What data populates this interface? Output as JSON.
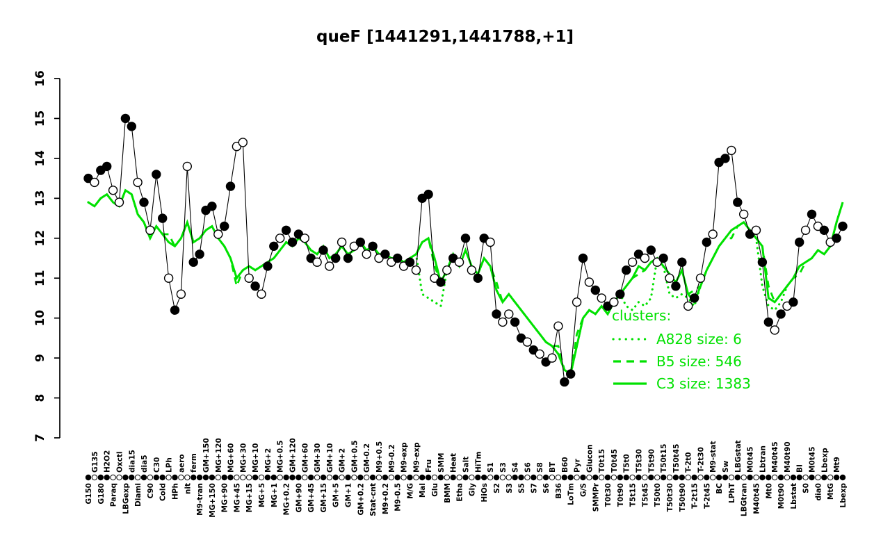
{
  "title": "queF [1441291,1441788,+1]",
  "colors": {
    "cluster_green": "#00e100",
    "point_black": "#000000",
    "background": "#ffffff"
  },
  "legend": {
    "header": "clusters:",
    "color": "#00e100",
    "items": [
      {
        "name": "A828",
        "label": "A828 size: 6",
        "size": 6,
        "style": "dotted"
      },
      {
        "name": "B5",
        "label": "B5 size: 546",
        "size": 546,
        "style": "dashed"
      },
      {
        "name": "C3",
        "label": "C3 size: 1383",
        "size": 1383,
        "style": "solid"
      }
    ]
  },
  "chart_data": {
    "type": "line",
    "title": "queF [1441291,1441788,+1]",
    "xlabel": "",
    "ylabel": "",
    "ylim": [
      7,
      16
    ],
    "yticks": [
      7,
      8,
      9,
      10,
      11,
      12,
      13,
      14,
      15,
      16
    ],
    "grid": false,
    "legend_position": "inside-right",
    "categories": [
      "G150",
      "G135",
      "G180",
      "H2O2",
      "Paraq",
      "Oxctl",
      "LBGexp",
      "dia15",
      "Diami",
      "dia5",
      "C90",
      "C30",
      "Cold",
      "LPh",
      "HPh",
      "aero",
      "nit",
      "ferm",
      "M9-tran",
      "GM+150",
      "MG+150",
      "MG+120",
      "MG+90",
      "MG+60",
      "MG+45",
      "MG+30",
      "MG+15",
      "MG+10",
      "MG+5",
      "MG+2",
      "MG+1",
      "MG+0.5",
      "MG+0.2",
      "GM+120",
      "GM+90",
      "GM+60",
      "GM+45",
      "GM+30",
      "GM+15",
      "GM+10",
      "GM+5",
      "GM+2",
      "GM+1",
      "GM+0.5",
      "GM+0.2",
      "GM-0.2",
      "Stat-cnt",
      "M9+0.5",
      "M9+0.2",
      "M9-0.2",
      "M9-0.5",
      "M9-exp",
      "M/G",
      "M9-exp",
      "Mal",
      "Fru",
      "Glu",
      "SMM",
      "BMM",
      "Heat",
      "Etha",
      "Salt",
      "Gly",
      "HiTm",
      "HiOs",
      "S1",
      "S2",
      "S3",
      "S3",
      "S4",
      "S5",
      "S6",
      "S7",
      "S8",
      "S6",
      "BT",
      "B36",
      "B60",
      "LoTm",
      "Pyr",
      "G/S",
      "Glucon",
      "SMMPr",
      "T0t15",
      "T0t30",
      "T0t45",
      "T0t90",
      "T5t0",
      "T5t15",
      "T5t30",
      "T5t45",
      "T5t90",
      "T50t0",
      "T50t15",
      "T50t30",
      "T50t45",
      "T50t90",
      "T-2t0",
      "T-2t15",
      "T-2t30",
      "T-2t45",
      "M9-stat",
      "BC",
      "Sw",
      "LPhT",
      "LBGstat",
      "LBGtran",
      "M0t45",
      "M40t45",
      "Lbtran",
      "Mt0",
      "M40t45",
      "M0t90",
      "M40t90",
      "Lbstat",
      "BI",
      "S0",
      "M0t45",
      "dia0",
      "Lbexp",
      "MtG",
      "Mt9",
      "Lbexp"
    ],
    "series": [
      {
        "name": "queF expression",
        "role": "main",
        "type": "scatter+line",
        "color": "#000000",
        "values": [
          13.5,
          13.4,
          13.7,
          13.8,
          13.2,
          12.9,
          15.0,
          14.8,
          13.4,
          12.9,
          12.2,
          13.6,
          12.5,
          11.0,
          10.2,
          10.6,
          13.8,
          11.4,
          11.6,
          12.7,
          12.8,
          12.1,
          12.3,
          13.3,
          14.3,
          14.4,
          11.0,
          10.8,
          10.6,
          11.3,
          11.8,
          12.0,
          12.2,
          11.9,
          12.1,
          12.0,
          11.5,
          11.4,
          11.7,
          11.3,
          11.5,
          11.9,
          11.5,
          11.8,
          11.9,
          11.6,
          11.8,
          11.5,
          11.6,
          11.4,
          11.5,
          11.3,
          11.4,
          11.2,
          13.0,
          13.1,
          11.0,
          10.9,
          11.2,
          11.5,
          11.4,
          12.0,
          11.2,
          11.0,
          12.0,
          11.9,
          10.1,
          9.9,
          10.1,
          9.9,
          9.5,
          9.4,
          9.2,
          9.1,
          8.9,
          9.0,
          9.8,
          8.4,
          8.6,
          10.4,
          11.5,
          10.9,
          10.7,
          10.5,
          10.3,
          10.4,
          10.6,
          11.2,
          11.4,
          11.6,
          11.5,
          11.7,
          11.4,
          11.5,
          11.0,
          10.8,
          11.4,
          10.3,
          10.5,
          11.0,
          11.9,
          12.1,
          13.9,
          14.0,
          14.2,
          12.9,
          12.6,
          12.1,
          12.2,
          11.4,
          9.9,
          9.7,
          10.1,
          10.3,
          10.4,
          11.9,
          12.2,
          12.6,
          12.3,
          12.2,
          11.9,
          12.0,
          12.3
        ],
        "filled": [
          1,
          0,
          1,
          1,
          0,
          0,
          1,
          1,
          0,
          1,
          0,
          1,
          1,
          0,
          1,
          0,
          0,
          1,
          1,
          1,
          1,
          0,
          1,
          1,
          0,
          0,
          0,
          1,
          0,
          1,
          1,
          0,
          1,
          1,
          1,
          0,
          1,
          0,
          1,
          0,
          1,
          0,
          1,
          0,
          1,
          0,
          1,
          0,
          1,
          0,
          1,
          0,
          1,
          0,
          1,
          1,
          0,
          1,
          0,
          1,
          0,
          1,
          0,
          1,
          1,
          0,
          1,
          0,
          0,
          1,
          1,
          0,
          1,
          0,
          1,
          0,
          0,
          1,
          1,
          0,
          1,
          0,
          1,
          0,
          1,
          0,
          1,
          1,
          0,
          1,
          0,
          1,
          0,
          1,
          0,
          1,
          1,
          0,
          1,
          0,
          1,
          0,
          1,
          1,
          0,
          1,
          0,
          1,
          0,
          1,
          1,
          0,
          1,
          0,
          1,
          1,
          0,
          1,
          0,
          1,
          0,
          1,
          1
        ]
      },
      {
        "name": "A828",
        "role": "cluster",
        "type": "line",
        "style": "dotted",
        "color": "#00e100",
        "values": [
          12.9,
          12.8,
          13.0,
          13.1,
          12.9,
          12.8,
          13.2,
          13.1,
          12.6,
          12.4,
          12.0,
          12.3,
          12.1,
          11.9,
          11.8,
          12.0,
          12.4,
          11.9,
          12.0,
          12.2,
          12.3,
          12.0,
          11.8,
          11.5,
          11.0,
          11.2,
          11.3,
          11.2,
          11.3,
          11.4,
          11.5,
          11.7,
          11.9,
          11.8,
          12.0,
          11.9,
          11.7,
          11.6,
          11.8,
          11.5,
          11.6,
          11.8,
          11.6,
          11.7,
          11.9,
          11.7,
          11.8,
          11.6,
          11.6,
          11.5,
          11.5,
          11.4,
          11.5,
          11.6,
          10.6,
          10.5,
          10.4,
          10.3,
          11.2,
          11.6,
          11.3,
          11.7,
          11.3,
          11.1,
          11.5,
          11.3,
          10.7,
          10.4,
          10.6,
          10.4,
          10.2,
          10.0,
          9.8,
          9.6,
          9.4,
          9.3,
          9.1,
          8.7,
          8.6,
          9.3,
          10.0,
          10.2,
          10.1,
          10.3,
          10.1,
          10.4,
          10.6,
          10.3,
          10.2,
          10.4,
          10.3,
          10.5,
          11.5,
          11.3,
          10.6,
          10.5,
          10.6,
          10.5,
          10.3,
          10.8,
          11.2,
          11.5,
          11.8,
          12.0,
          12.2,
          12.3,
          12.4,
          12.2,
          12.0,
          10.8,
          10.3,
          10.2,
          10.4,
          10.8,
          11.0,
          11.3,
          11.4,
          11.5,
          11.7,
          11.6,
          11.8,
          12.4,
          12.9
        ]
      },
      {
        "name": "B5",
        "role": "cluster",
        "type": "line",
        "style": "dashed",
        "color": "#00e100",
        "values": [
          12.9,
          12.8,
          13.0,
          13.1,
          12.9,
          12.8,
          13.2,
          13.1,
          12.6,
          12.4,
          12.0,
          12.3,
          12.1,
          12.1,
          11.8,
          12.0,
          12.4,
          11.9,
          12.0,
          12.2,
          12.3,
          12.0,
          11.8,
          11.5,
          10.8,
          11.2,
          11.3,
          11.2,
          11.3,
          11.4,
          11.5,
          11.7,
          11.9,
          11.8,
          12.0,
          11.9,
          11.7,
          11.6,
          11.8,
          11.5,
          11.6,
          11.8,
          11.6,
          11.7,
          11.9,
          11.7,
          11.8,
          11.6,
          11.6,
          11.5,
          11.5,
          11.4,
          11.5,
          11.6,
          11.9,
          12.0,
          11.3,
          10.9,
          11.2,
          11.6,
          11.3,
          11.7,
          11.3,
          11.1,
          11.5,
          11.3,
          10.9,
          10.4,
          10.6,
          10.4,
          10.2,
          10.0,
          9.8,
          9.6,
          9.4,
          9.3,
          9.3,
          8.7,
          8.6,
          9.6,
          10.0,
          10.2,
          10.1,
          10.3,
          10.1,
          10.4,
          10.6,
          10.8,
          11.0,
          11.1,
          11.2,
          11.4,
          11.5,
          11.3,
          11.1,
          10.9,
          11.2,
          10.6,
          10.7,
          10.8,
          11.2,
          11.5,
          11.8,
          12.0,
          12.0,
          12.3,
          12.4,
          12.2,
          12.0,
          11.8,
          10.8,
          10.4,
          10.6,
          10.8,
          11.0,
          11.1,
          11.4,
          11.5,
          11.7,
          11.6,
          11.8,
          12.4,
          12.9
        ]
      },
      {
        "name": "C3",
        "role": "cluster",
        "type": "line",
        "style": "solid",
        "color": "#00e100",
        "values": [
          12.9,
          12.8,
          13.0,
          13.1,
          12.9,
          12.8,
          13.2,
          13.1,
          12.6,
          12.4,
          12.0,
          12.3,
          12.1,
          11.9,
          11.8,
          12.0,
          12.4,
          11.9,
          12.0,
          12.2,
          12.3,
          12.0,
          11.8,
          11.5,
          11.0,
          11.2,
          11.3,
          11.2,
          11.3,
          11.4,
          11.5,
          11.7,
          11.9,
          11.8,
          12.0,
          11.9,
          11.7,
          11.6,
          11.8,
          11.5,
          11.6,
          11.8,
          11.6,
          11.7,
          11.9,
          11.7,
          11.8,
          11.6,
          11.6,
          11.5,
          11.5,
          11.4,
          11.5,
          11.6,
          11.9,
          12.0,
          11.5,
          10.9,
          11.2,
          11.6,
          11.3,
          11.7,
          11.3,
          11.1,
          11.5,
          11.3,
          10.7,
          10.4,
          10.6,
          10.4,
          10.2,
          10.0,
          9.8,
          9.6,
          9.4,
          9.3,
          9.1,
          8.7,
          8.6,
          9.3,
          10.0,
          10.2,
          10.1,
          10.3,
          10.1,
          10.4,
          10.6,
          10.8,
          11.0,
          11.3,
          11.2,
          11.4,
          11.5,
          11.3,
          11.1,
          10.9,
          11.2,
          10.6,
          10.4,
          10.8,
          11.2,
          11.5,
          11.8,
          12.0,
          12.2,
          12.3,
          12.4,
          12.2,
          12.0,
          11.8,
          10.5,
          10.4,
          10.6,
          10.8,
          11.0,
          11.3,
          11.4,
          11.5,
          11.7,
          11.6,
          11.8,
          12.4,
          12.9
        ]
      }
    ]
  }
}
